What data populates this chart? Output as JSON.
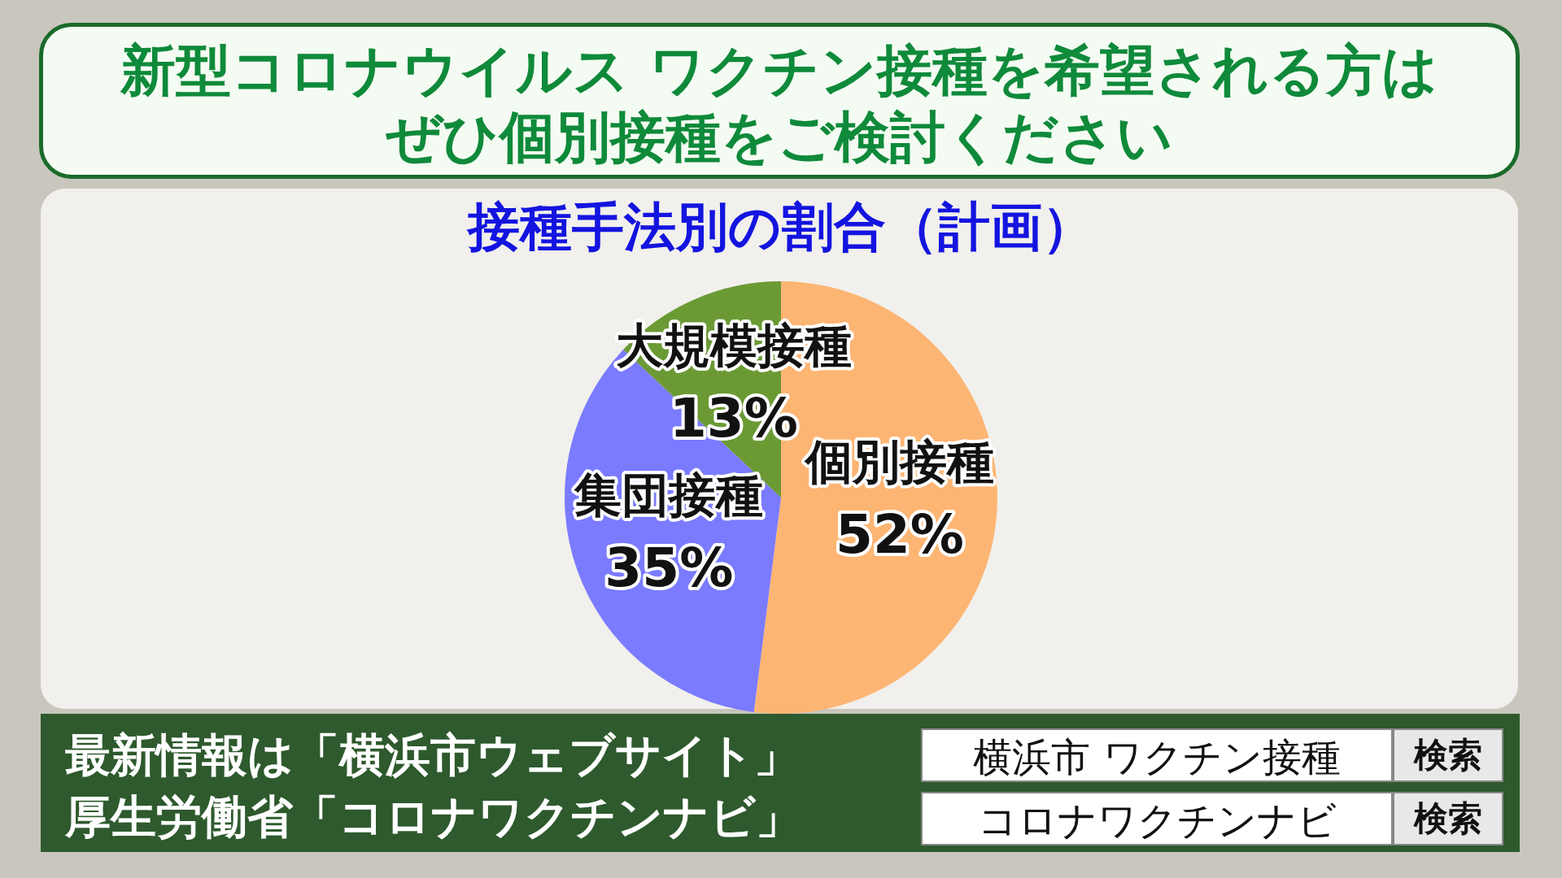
{
  "chart_data": {
    "type": "pie",
    "title": "新型コロナウイルス ワクチン接種を希望される方は",
    "subtitle": "ぜひ個別接種をご検討ください",
    "categories": [
      "個別接種",
      "集団接種",
      "大規模接種"
    ],
    "values": [
      52,
      35,
      13
    ],
    "value_labels": [
      "52%",
      "35%",
      "13%"
    ],
    "colors": [
      "#fdb574",
      "#7b7bff",
      "#6b9a35"
    ],
    "annotations": [
      "接種手法別の割合（計画）",
      "最新情報は「横浜市ウェブサイト」",
      "厚生労働省「コロナワクチンナビ」",
      "横浜市 ワクチン接種",
      "検索",
      "コロナワクチンナビ",
      "検索"
    ]
  }
}
